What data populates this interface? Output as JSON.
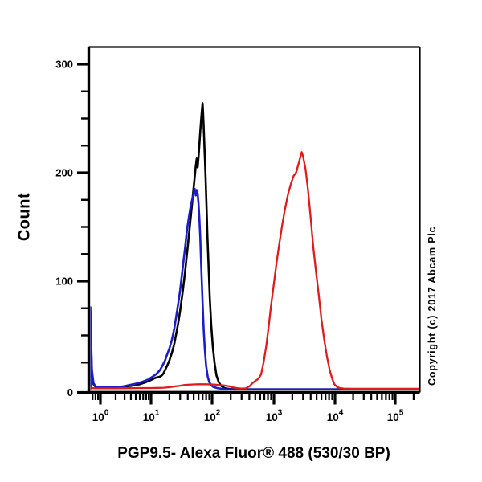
{
  "figure": {
    "background": "#ffffff",
    "ylabel": "Count",
    "xlabel": "PGP9.5- Alexa Fluor® 488 (530/30 BP)",
    "copyright": "Copyright (c) 2017 Abcam Plc"
  },
  "chart_data": {
    "type": "line",
    "subtype": "flow-cytometry-histogram",
    "title": "",
    "xlabel": "PGP9.5- Alexa Fluor® 488 (530/30 BP)",
    "ylabel": "Count",
    "grid": false,
    "frame_color": "#000000",
    "x_axis": {
      "scale": "log",
      "range": [
        0.62,
        260000
      ],
      "major_tick_exponents": [
        0,
        1,
        2,
        3,
        4,
        5
      ],
      "tick_label_base": "10",
      "minor_ticks": "log-decade-2-to-9"
    },
    "y_axis": {
      "range": [
        0,
        316
      ],
      "major_ticks": [
        0,
        100,
        200,
        300
      ],
      "major_tick_labels": [
        "0",
        "100",
        "200",
        "300"
      ],
      "minor_tick_step": 25
    },
    "series": [
      {
        "name": "black-curve",
        "color": "#000000",
        "peak": {
          "x": 70,
          "count": 264
        },
        "points": [
          [
            0.62,
            1
          ],
          [
            0.625,
            72
          ],
          [
            0.65,
            45
          ],
          [
            0.68,
            15
          ],
          [
            0.73,
            5
          ],
          [
            0.8,
            2.5
          ],
          [
            0.9,
            2
          ],
          [
            1.2,
            1.5
          ],
          [
            1.6,
            1.5
          ],
          [
            2,
            1.6
          ],
          [
            2.5,
            2
          ],
          [
            3.2,
            3
          ],
          [
            4,
            3.5
          ],
          [
            5,
            4.5
          ],
          [
            6,
            5
          ],
          [
            7,
            6
          ],
          [
            8,
            7
          ],
          [
            9,
            8
          ],
          [
            10,
            9
          ],
          [
            11,
            10
          ],
          [
            12,
            11
          ],
          [
            13,
            11.5
          ],
          [
            14,
            12
          ],
          [
            15,
            13
          ],
          [
            16,
            15
          ],
          [
            17,
            18
          ],
          [
            18,
            21
          ],
          [
            19,
            24
          ],
          [
            20,
            27
          ],
          [
            22,
            34
          ],
          [
            24,
            42
          ],
          [
            26,
            52
          ],
          [
            28,
            62
          ],
          [
            30,
            73
          ],
          [
            33,
            90
          ],
          [
            36,
            108
          ],
          [
            39,
            126
          ],
          [
            42,
            144
          ],
          [
            46,
            166
          ],
          [
            49,
            182
          ],
          [
            52,
            196
          ],
          [
            54,
            206
          ],
          [
            56,
            213
          ],
          [
            58,
            205
          ],
          [
            60,
            214
          ],
          [
            62,
            226
          ],
          [
            64,
            238
          ],
          [
            66,
            248
          ],
          [
            68,
            257
          ],
          [
            70,
            264
          ],
          [
            71,
            257
          ],
          [
            73,
            242
          ],
          [
            75,
            224
          ],
          [
            78,
            199
          ],
          [
            81,
            171
          ],
          [
            84,
            142
          ],
          [
            88,
            111
          ],
          [
            92,
            84
          ],
          [
            97,
            59
          ],
          [
            103,
            39
          ],
          [
            110,
            24
          ],
          [
            118,
            13
          ],
          [
            128,
            7
          ],
          [
            140,
            3.5
          ],
          [
            150,
            2.2
          ],
          [
            165,
            1.2
          ],
          [
            190,
            0.6
          ],
          [
            230,
            0.3
          ],
          [
            350,
            0.2
          ],
          [
            1000,
            0.2
          ],
          [
            10000,
            0.2
          ],
          [
            250000,
            0.2
          ]
        ]
      },
      {
        "name": "blue-curve",
        "color": "#1c1cc8",
        "peak": {
          "x": 58,
          "count": 185
        },
        "points": [
          [
            0.62,
            1
          ],
          [
            0.625,
            76
          ],
          [
            0.65,
            50
          ],
          [
            0.68,
            18
          ],
          [
            0.73,
            6
          ],
          [
            0.8,
            3
          ],
          [
            0.9,
            2.5
          ],
          [
            1.2,
            2
          ],
          [
            1.6,
            2
          ],
          [
            2,
            2.2
          ],
          [
            2.5,
            2.6
          ],
          [
            3.2,
            3.5
          ],
          [
            4,
            4.5
          ],
          [
            5,
            5.5
          ],
          [
            6,
            6.5
          ],
          [
            7,
            7.5
          ],
          [
            8,
            8.5
          ],
          [
            9,
            9.5
          ],
          [
            10,
            11
          ],
          [
            11,
            12.5
          ],
          [
            12,
            14
          ],
          [
            13,
            16
          ],
          [
            14,
            18
          ],
          [
            15,
            21
          ],
          [
            16,
            24
          ],
          [
            17,
            27
          ],
          [
            18,
            31
          ],
          [
            20,
            38
          ],
          [
            22,
            46
          ],
          [
            24,
            56
          ],
          [
            26,
            68
          ],
          [
            28,
            80
          ],
          [
            30,
            92
          ],
          [
            33,
            112
          ],
          [
            36,
            130
          ],
          [
            39,
            148
          ],
          [
            42,
            160
          ],
          [
            45,
            170
          ],
          [
            48,
            177
          ],
          [
            50,
            181
          ],
          [
            52,
            185
          ],
          [
            54,
            179
          ],
          [
            56,
            184
          ],
          [
            58,
            181
          ],
          [
            60,
            172
          ],
          [
            62,
            158
          ],
          [
            64,
            140
          ],
          [
            66,
            118
          ],
          [
            68,
            98
          ],
          [
            70,
            80
          ],
          [
            73,
            55
          ],
          [
            76,
            38
          ],
          [
            80,
            22
          ],
          [
            85,
            12
          ],
          [
            90,
            7
          ],
          [
            97,
            4
          ],
          [
            105,
            2.5
          ],
          [
            120,
            1.5
          ],
          [
            140,
            0.8
          ],
          [
            170,
            0.4
          ],
          [
            220,
            0.2
          ],
          [
            1000,
            0.2
          ],
          [
            10000,
            0.2
          ],
          [
            250000,
            0.2
          ]
        ]
      },
      {
        "name": "red-curve",
        "color": "#de1c1c",
        "peak": {
          "x": 2850,
          "count": 219
        },
        "points": [
          [
            0.62,
            1.5
          ],
          [
            0.8,
            1.2
          ],
          [
            1,
            1.2
          ],
          [
            1.5,
            1.2
          ],
          [
            2,
            1.2
          ],
          [
            3,
            1.3
          ],
          [
            4,
            1.3
          ],
          [
            5,
            1.4
          ],
          [
            6,
            1.5
          ],
          [
            8,
            1.5
          ],
          [
            10,
            1.5
          ],
          [
            13,
            1.6
          ],
          [
            16,
            1.8
          ],
          [
            20,
            2.2
          ],
          [
            25,
            3
          ],
          [
            30,
            3.6
          ],
          [
            35,
            4.2
          ],
          [
            40,
            4.5
          ],
          [
            50,
            4.8
          ],
          [
            60,
            5
          ],
          [
            80,
            5
          ],
          [
            100,
            4.8
          ],
          [
            130,
            4.4
          ],
          [
            160,
            3.8
          ],
          [
            190,
            3
          ],
          [
            220,
            2
          ],
          [
            260,
            1.3
          ],
          [
            300,
            1
          ],
          [
            350,
            1.2
          ],
          [
            400,
            3
          ],
          [
            450,
            6
          ],
          [
            500,
            8
          ],
          [
            560,
            10
          ],
          [
            620,
            14
          ],
          [
            680,
            25
          ],
          [
            750,
            40
          ],
          [
            820,
            58
          ],
          [
            900,
            78
          ],
          [
            1000,
            98
          ],
          [
            1100,
            116
          ],
          [
            1200,
            131
          ],
          [
            1350,
            150
          ],
          [
            1500,
            165
          ],
          [
            1700,
            180
          ],
          [
            1900,
            190
          ],
          [
            2100,
            197
          ],
          [
            2300,
            200
          ],
          [
            2500,
            207
          ],
          [
            2700,
            214
          ],
          [
            2850,
            219
          ],
          [
            3000,
            215
          ],
          [
            3300,
            203
          ],
          [
            3600,
            185
          ],
          [
            4000,
            158
          ],
          [
            4400,
            132
          ],
          [
            4900,
            108
          ],
          [
            5400,
            88
          ],
          [
            6000,
            65
          ],
          [
            6700,
            45
          ],
          [
            7400,
            30
          ],
          [
            8200,
            18
          ],
          [
            9000,
            10
          ],
          [
            9800,
            5
          ],
          [
            10800,
            2.5
          ],
          [
            12000,
            1.5
          ],
          [
            14000,
            1
          ],
          [
            20000,
            0.8
          ],
          [
            250000,
            0.8
          ]
        ]
      }
    ]
  }
}
